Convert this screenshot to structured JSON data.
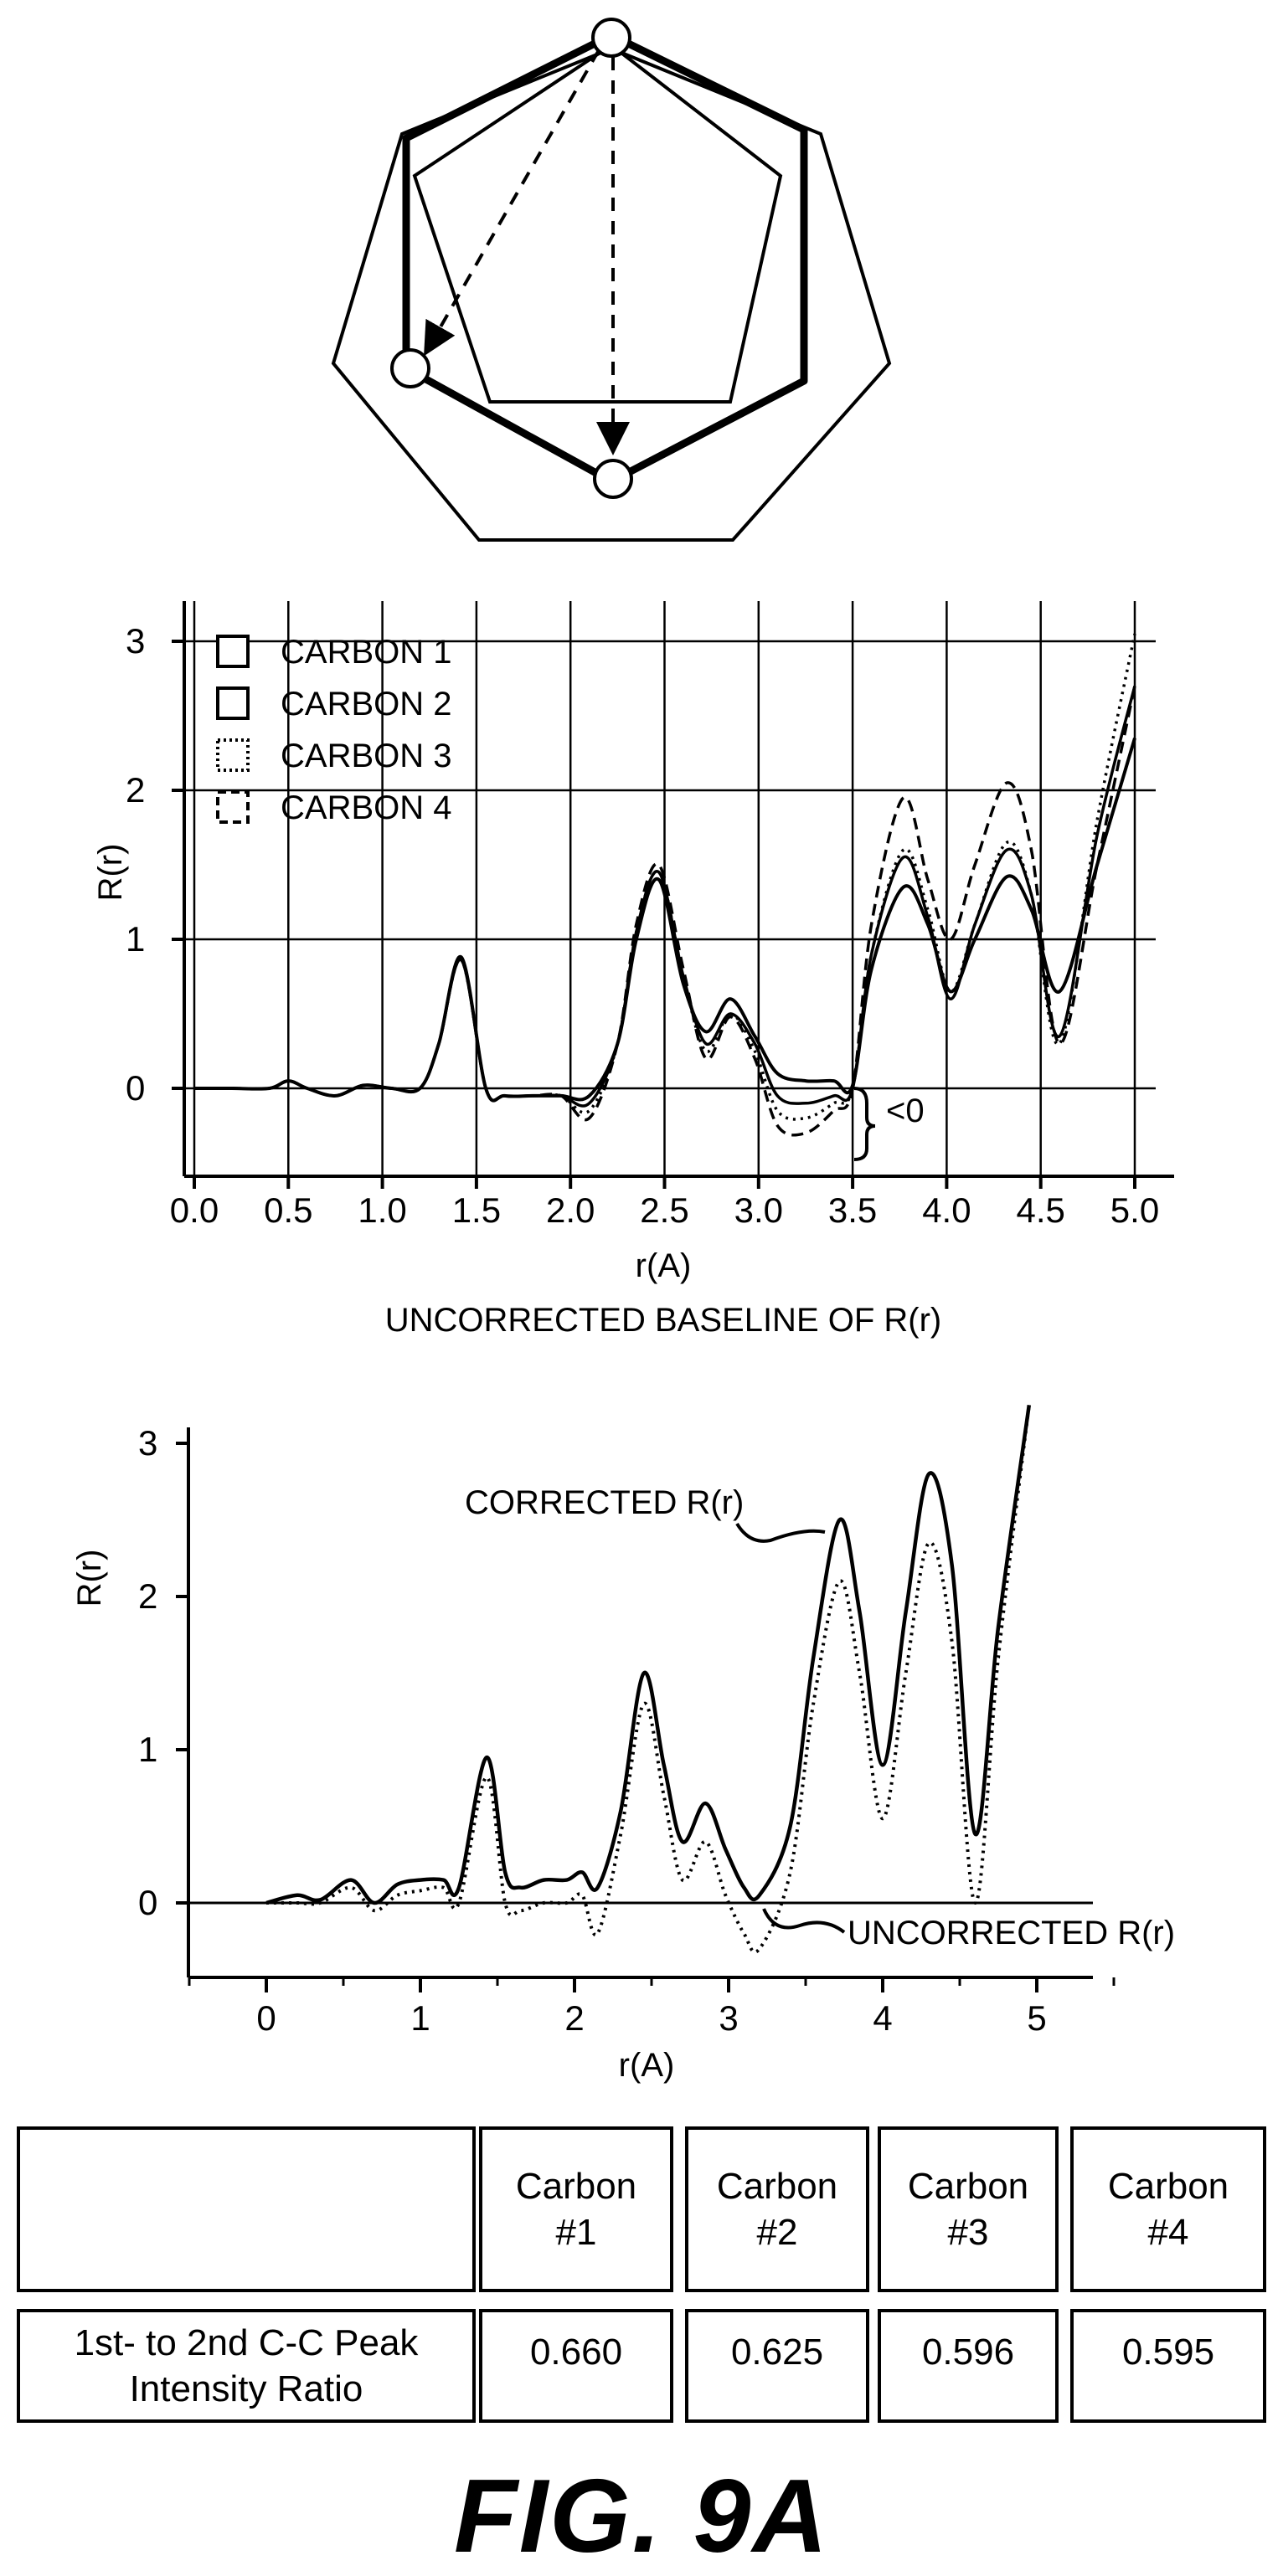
{
  "chart_data": [
    {
      "type": "diagram",
      "description_free": true,
      "nodes": 3
    },
    {
      "type": "line",
      "title": "UNCORRECTED BASELINE OF R(r)",
      "xlabel": "r(A)",
      "ylabel": "R(r)",
      "xlim": [
        0.0,
        5.0
      ],
      "ylim": [
        -0.5,
        3.2
      ],
      "xticks": [
        "0.0",
        "0.5",
        "1.0",
        "1.5",
        "2.0",
        "2.5",
        "3.0",
        "3.5",
        "4.0",
        "4.5",
        "5.0"
      ],
      "yticks": [
        "0",
        "1",
        "2",
        "3"
      ],
      "grid": true,
      "legend_position": "top-left",
      "annotation": "<0",
      "series": [
        {
          "name": "CARBON 1",
          "style": "solid",
          "x": [
            0.0,
            0.2,
            0.4,
            0.5,
            0.6,
            0.75,
            0.9,
            1.05,
            1.2,
            1.3,
            1.42,
            1.55,
            1.65,
            1.8,
            1.95,
            2.1,
            2.25,
            2.35,
            2.47,
            2.6,
            2.72,
            2.85,
            2.98,
            3.1,
            3.25,
            3.4,
            3.5,
            3.6,
            3.77,
            3.9,
            4.02,
            4.15,
            4.32,
            4.45,
            4.6,
            4.8,
            5.0
          ],
          "values": [
            0.0,
            0.0,
            0.0,
            0.05,
            0.0,
            -0.05,
            0.02,
            0.0,
            0.0,
            0.3,
            0.88,
            0.0,
            -0.05,
            -0.05,
            -0.05,
            -0.05,
            0.3,
            1.0,
            1.4,
            0.7,
            0.38,
            0.6,
            0.35,
            0.1,
            0.05,
            0.05,
            0.02,
            0.8,
            1.35,
            1.1,
            0.65,
            1.0,
            1.42,
            1.2,
            0.65,
            1.5,
            2.35
          ]
        },
        {
          "name": "CARBON 2",
          "style": "solid",
          "x": [
            0.0,
            0.2,
            0.4,
            0.5,
            0.6,
            0.75,
            0.9,
            1.05,
            1.2,
            1.3,
            1.42,
            1.55,
            1.65,
            1.8,
            1.95,
            2.1,
            2.25,
            2.35,
            2.47,
            2.6,
            2.72,
            2.85,
            2.98,
            3.1,
            3.25,
            3.4,
            3.5,
            3.6,
            3.77,
            3.9,
            4.02,
            4.15,
            4.32,
            4.45,
            4.6,
            4.8,
            5.0
          ],
          "values": [
            0.0,
            0.0,
            0.0,
            0.05,
            0.0,
            -0.05,
            0.02,
            0.0,
            0.0,
            0.3,
            0.86,
            0.0,
            -0.05,
            -0.05,
            -0.05,
            -0.1,
            0.3,
            1.05,
            1.45,
            0.75,
            0.3,
            0.5,
            0.3,
            -0.05,
            -0.1,
            -0.05,
            0.0,
            0.9,
            1.55,
            1.15,
            0.6,
            1.1,
            1.6,
            1.3,
            0.35,
            1.7,
            2.7
          ]
        },
        {
          "name": "CARBON 3",
          "style": "dotted",
          "x": [
            0.0,
            0.2,
            0.4,
            0.5,
            0.6,
            0.75,
            0.9,
            1.05,
            1.2,
            1.3,
            1.42,
            1.55,
            1.65,
            1.8,
            1.95,
            2.1,
            2.25,
            2.35,
            2.47,
            2.6,
            2.72,
            2.85,
            2.98,
            3.1,
            3.25,
            3.4,
            3.5,
            3.6,
            3.77,
            3.9,
            4.02,
            4.15,
            4.32,
            4.45,
            4.6,
            4.8,
            5.0
          ],
          "values": [
            0.0,
            0.0,
            0.0,
            0.05,
            0.0,
            -0.05,
            0.02,
            0.0,
            0.0,
            0.3,
            0.86,
            0.0,
            -0.05,
            -0.05,
            -0.05,
            -0.15,
            0.3,
            1.05,
            1.45,
            0.75,
            0.25,
            0.5,
            0.25,
            -0.15,
            -0.2,
            -0.1,
            0.0,
            0.9,
            1.6,
            1.2,
            0.65,
            1.1,
            1.65,
            1.3,
            0.3,
            1.8,
            3.05
          ]
        },
        {
          "name": "CARBON 4",
          "style": "dashed",
          "x": [
            0.0,
            0.2,
            0.4,
            0.5,
            0.6,
            0.75,
            0.9,
            1.05,
            1.2,
            1.3,
            1.42,
            1.55,
            1.65,
            1.8,
            1.95,
            2.1,
            2.25,
            2.35,
            2.47,
            2.6,
            2.72,
            2.85,
            2.98,
            3.1,
            3.25,
            3.4,
            3.5,
            3.6,
            3.77,
            3.9,
            4.02,
            4.15,
            4.32,
            4.45,
            4.6,
            4.8,
            5.0
          ],
          "values": [
            0.0,
            0.0,
            0.0,
            0.05,
            0.0,
            -0.05,
            0.02,
            0.0,
            0.0,
            0.3,
            0.88,
            0.0,
            -0.05,
            -0.05,
            -0.05,
            -0.2,
            0.3,
            1.1,
            1.5,
            0.8,
            0.2,
            0.48,
            0.2,
            -0.25,
            -0.3,
            -0.15,
            0.0,
            1.1,
            1.95,
            1.4,
            1.0,
            1.5,
            2.05,
            1.6,
            0.3,
            1.5,
            2.7
          ]
        }
      ]
    },
    {
      "type": "line",
      "xlabel": "r(A)",
      "ylabel": "R(r)",
      "xlim": [
        -0.5,
        5.5
      ],
      "ylim": [
        -0.4,
        3.3
      ],
      "xticks": [
        "0",
        "1",
        "2",
        "3",
        "4",
        "5"
      ],
      "yticks": [
        "0",
        "1",
        "2",
        "3"
      ],
      "grid": false,
      "annotations": [
        "CORRECTED R(r)",
        "UNCORRECTED R(r)"
      ],
      "series": [
        {
          "style": "solid",
          "x": [
            0.0,
            0.2,
            0.35,
            0.55,
            0.7,
            0.85,
            1.0,
            1.15,
            1.25,
            1.43,
            1.55,
            1.65,
            1.8,
            1.95,
            2.05,
            2.15,
            2.3,
            2.45,
            2.58,
            2.7,
            2.85,
            2.98,
            3.1,
            3.2,
            3.4,
            3.55,
            3.72,
            3.85,
            4.0,
            4.15,
            4.3,
            4.45,
            4.6,
            4.75,
            4.95
          ],
          "values": [
            0.0,
            0.05,
            0.02,
            0.15,
            0.0,
            0.12,
            0.15,
            0.15,
            0.1,
            0.95,
            0.2,
            0.1,
            0.15,
            0.15,
            0.2,
            0.1,
            0.6,
            1.5,
            0.9,
            0.4,
            0.65,
            0.35,
            0.1,
            0.05,
            0.5,
            1.6,
            2.5,
            1.9,
            0.9,
            1.9,
            2.8,
            2.2,
            0.45,
            1.8,
            3.25
          ]
        },
        {
          "style": "dotted",
          "x": [
            0.0,
            0.2,
            0.35,
            0.55,
            0.7,
            0.85,
            1.0,
            1.15,
            1.25,
            1.43,
            1.55,
            1.65,
            1.8,
            1.95,
            2.05,
            2.15,
            2.3,
            2.45,
            2.58,
            2.7,
            2.85,
            2.98,
            3.1,
            3.2,
            3.4,
            3.55,
            3.72,
            3.85,
            4.0,
            4.15,
            4.3,
            4.45,
            4.6,
            4.75,
            4.95
          ],
          "values": [
            0.0,
            0.0,
            0.0,
            0.1,
            -0.05,
            0.05,
            0.08,
            0.1,
            0.0,
            0.82,
            0.0,
            -0.05,
            0.0,
            0.0,
            0.05,
            -0.2,
            0.45,
            1.3,
            0.7,
            0.15,
            0.4,
            0.05,
            -0.2,
            -0.3,
            0.2,
            1.3,
            2.1,
            1.5,
            0.55,
            1.5,
            2.35,
            1.7,
            0.0,
            1.6,
            3.25
          ]
        }
      ]
    }
  ],
  "table": {
    "headers": [
      "",
      "Carbon\n#1",
      "Carbon\n#2",
      "Carbon\n#3",
      "Carbon\n#4"
    ],
    "header_lines": [
      [
        "Carbon",
        "#1"
      ],
      [
        "Carbon",
        "#2"
      ],
      [
        "Carbon",
        "#3"
      ],
      [
        "Carbon",
        "#4"
      ]
    ],
    "row_label_lines": [
      "1st- to 2nd C-C Peak",
      "Intensity Ratio"
    ],
    "values": [
      "0.660",
      "0.625",
      "0.596",
      "0.595"
    ]
  },
  "figure_caption": "FIG. 9A"
}
